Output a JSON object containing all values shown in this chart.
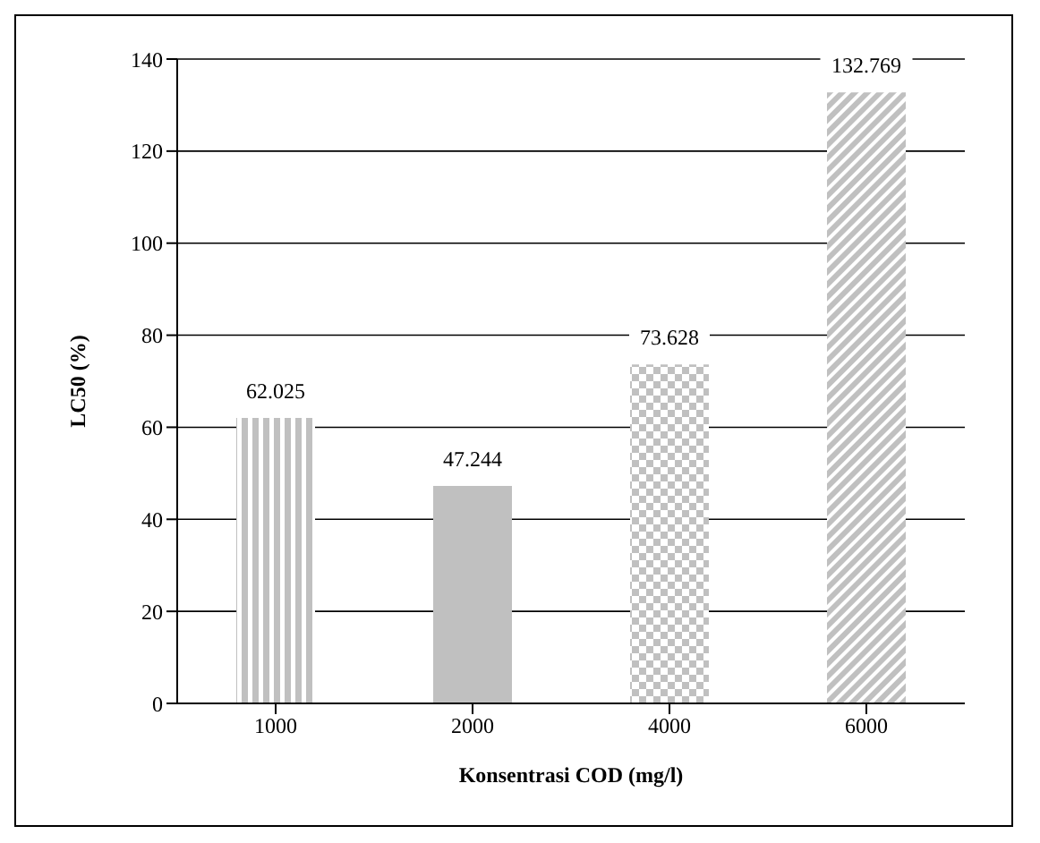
{
  "chart_data": {
    "type": "bar",
    "xlabel": "Konsentrasi COD (mg/l)",
    "ylabel": "LC50 (%)",
    "categories": [
      "1000",
      "2000",
      "4000",
      "6000"
    ],
    "values": [
      62.025,
      47.244,
      73.628,
      132.769
    ],
    "colors": [
      "#c0c0c0",
      "#c0c0c0",
      "#c0c0c0",
      "#c0c0c0"
    ],
    "ylim": [
      0,
      140
    ],
    "yticks": [
      0,
      20,
      40,
      60,
      80,
      100,
      120,
      140
    ],
    "grid": "y",
    "data_labels": true,
    "legend": false
  }
}
